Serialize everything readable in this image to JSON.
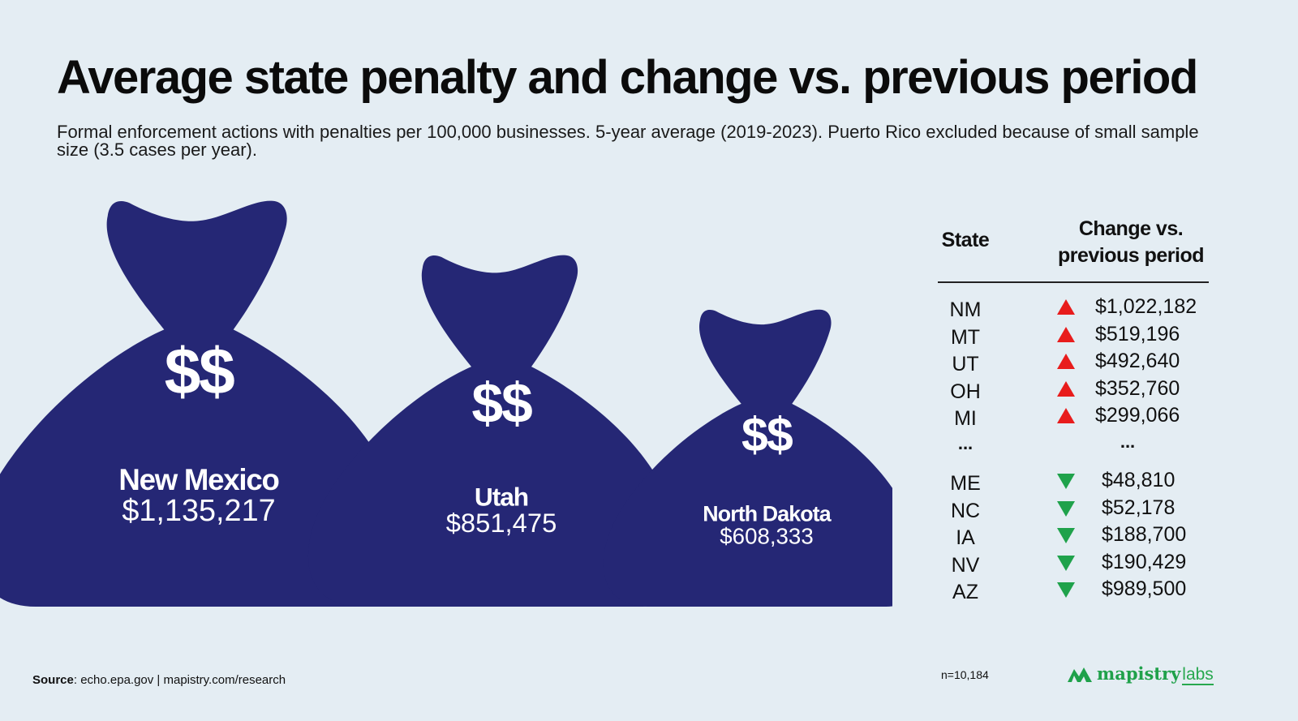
{
  "title": "Average state penalty and change vs. previous period",
  "subtitle": "Formal enforcement actions with penalties per 100,000 businesses. 5-year average (2019-2023). Puerto Rico excluded because of small sample size (3.5 cases per year).",
  "colors": {
    "bag": "#252775",
    "up": "#e81c1c",
    "down": "#1fa24b",
    "background": "#e4edf3",
    "logo": "#1fa14a"
  },
  "chart_data": [
    {
      "type": "bar",
      "encoding": "money-bag size",
      "categories": [
        "New Mexico",
        "Utah",
        "North Dakota"
      ],
      "values": [
        1135217,
        851475,
        608333
      ],
      "value_labels": [
        "$1,135,217",
        "$851,475",
        "$608,333"
      ],
      "symbol": "$$"
    },
    {
      "type": "table",
      "headers": {
        "state": "State",
        "change_line1": "Change vs.",
        "change_line2": "previous period"
      },
      "top_rows": [
        {
          "state": "NM",
          "direction": "up",
          "change": "$1,022,182"
        },
        {
          "state": "MT",
          "direction": "up",
          "change": "$519,196"
        },
        {
          "state": "UT",
          "direction": "up",
          "change": "$492,640"
        },
        {
          "state": "OH",
          "direction": "up",
          "change": "$352,760"
        },
        {
          "state": "MI",
          "direction": "up",
          "change": "$299,066"
        }
      ],
      "ellipsis": "...",
      "bottom_rows": [
        {
          "state": "ME",
          "direction": "down",
          "change": "$48,810"
        },
        {
          "state": "NC",
          "direction": "down",
          "change": "$52,178"
        },
        {
          "state": "IA",
          "direction": "down",
          "change": "$188,700"
        },
        {
          "state": "NV",
          "direction": "down",
          "change": "$190,429"
        },
        {
          "state": "AZ",
          "direction": "down",
          "change": "$989,500"
        }
      ]
    }
  ],
  "sample": "n=10,184",
  "source": {
    "label": "Source",
    "text": ": echo.epa.gov | mapistry.com/research"
  },
  "logo": {
    "word": "mapistry",
    "suffix": "labs",
    "icon": "mountain-logo-icon"
  }
}
